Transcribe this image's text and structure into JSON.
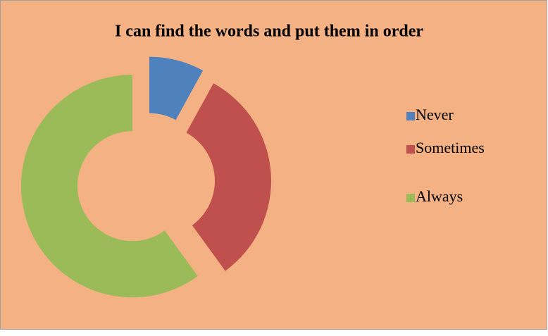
{
  "chart_data": {
    "type": "doughnut",
    "title": "I can find the words and put them in order",
    "categories": [
      "Never",
      "Sometimes",
      "Always"
    ],
    "values": [
      8,
      32,
      60
    ],
    "colors": [
      "#4f81bd",
      "#c0504d",
      "#9bbb59"
    ],
    "legend": "right"
  }
}
